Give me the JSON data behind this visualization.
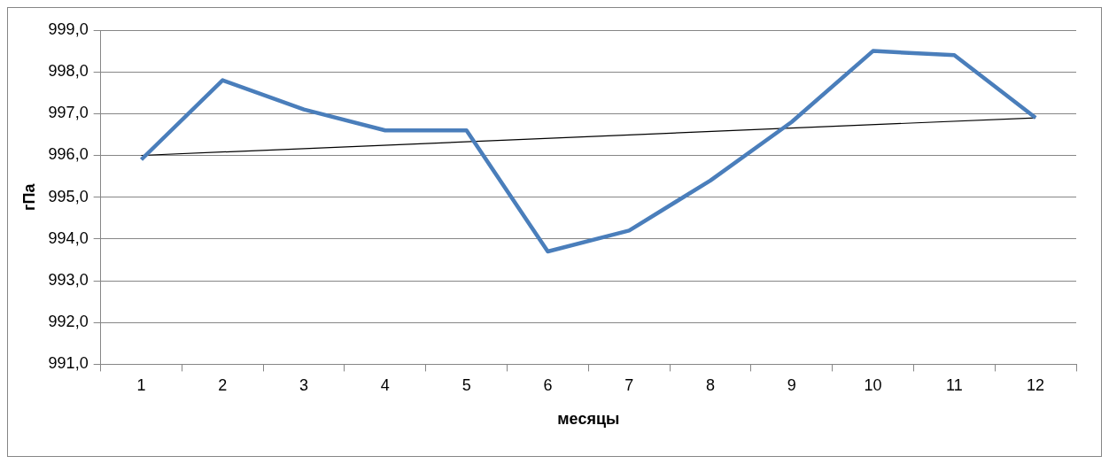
{
  "chart_data": {
    "type": "line",
    "xlabel": "месяцы",
    "ylabel": "гПа",
    "categories": [
      "1",
      "2",
      "3",
      "4",
      "5",
      "6",
      "7",
      "8",
      "9",
      "10",
      "11",
      "12"
    ],
    "series": [
      {
        "color": "#4a7ebb",
        "values": [
          995.9,
          997.8,
          997.1,
          996.6,
          996.6,
          993.7,
          994.2,
          995.4,
          996.8,
          998.5,
          998.4,
          996.9
        ]
      },
      {
        "type": "line",
        "color": "#000000",
        "x": [
          "1",
          "12"
        ],
        "values": [
          996.0,
          996.9
        ]
      }
    ],
    "ylim": [
      991,
      999
    ],
    "yticks": [
      {
        "value": 991,
        "label": "991,0"
      },
      {
        "value": 992,
        "label": "992,0"
      },
      {
        "value": 993,
        "label": "993,0"
      },
      {
        "value": 994,
        "label": "994,0"
      },
      {
        "value": 995,
        "label": "995,0"
      },
      {
        "value": 996,
        "label": "996,0"
      },
      {
        "value": 997,
        "label": "997,0"
      },
      {
        "value": 998,
        "label": "998,0"
      },
      {
        "value": 999,
        "label": "999,0"
      }
    ],
    "grid": "y",
    "legend": false
  }
}
